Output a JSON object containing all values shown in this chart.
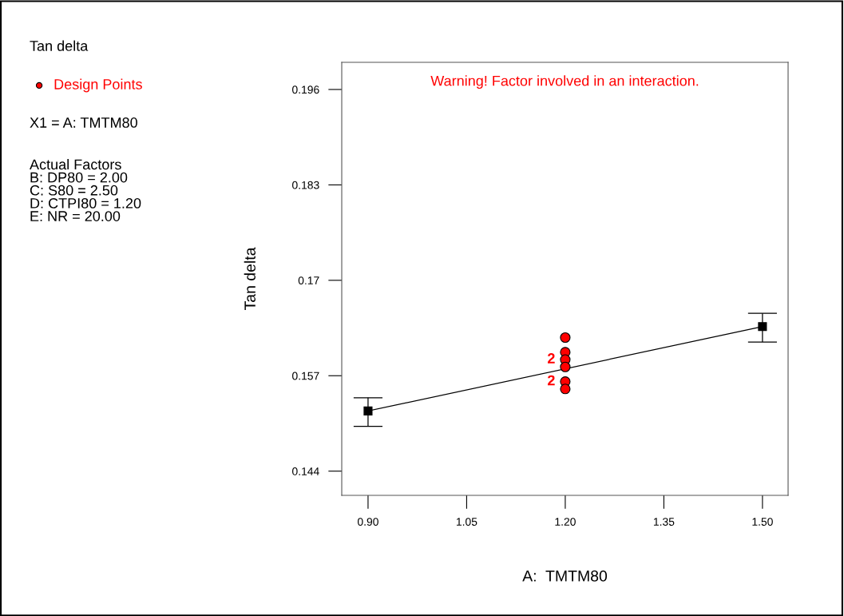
{
  "chart_data": {
    "type": "line",
    "title": "Warning! Factor involved in an interaction.",
    "xlabel": "A:  TMTM80",
    "ylabel": "Tan delta",
    "annotations": [
      "Tan delta",
      "X1 = A: TMTM80",
      "Actual Factors\nB: DP80 = 2.00\nC: S80 = 2.50\nD: CTPI80 = 1.20\nE: NR = 20.00",
      {
        "text": "2",
        "x": 1.2,
        "y": 0.1592
      },
      {
        "text": "2",
        "x": 1.2,
        "y": 0.1562
      }
    ],
    "series": [
      {
        "color": "#000000",
        "marker": "square",
        "x": [
          0.9,
          1.5
        ],
        "values": [
          0.1522,
          0.1637
        ],
        "errors": [
          [
            0.1501,
            0.154
          ],
          [
            0.1616,
            0.1655
          ]
        ]
      },
      {
        "type": "scatter",
        "name": "Design Points",
        "color": "#ff0000",
        "marker": "circle",
        "x": [
          1.2,
          1.2,
          1.2,
          1.2,
          1.2,
          1.2
        ],
        "values": [
          0.1622,
          0.1602,
          0.1592,
          0.1582,
          0.1562,
          0.1552
        ]
      }
    ],
    "xlim": [
      0.86,
      1.539
    ],
    "xticks": [
      {
        "value": 0.9,
        "label": "0.90"
      },
      1.05,
      {
        "value": 1.2,
        "label": "1.20"
      },
      1.35,
      {
        "value": 1.5,
        "label": "1.50"
      }
    ],
    "ylim": [
      0.1407,
      0.1997
    ],
    "yticks": [
      0.144,
      0.157,
      0.17,
      0.183,
      0.196
    ],
    "legend": "left",
    "grid": false
  }
}
